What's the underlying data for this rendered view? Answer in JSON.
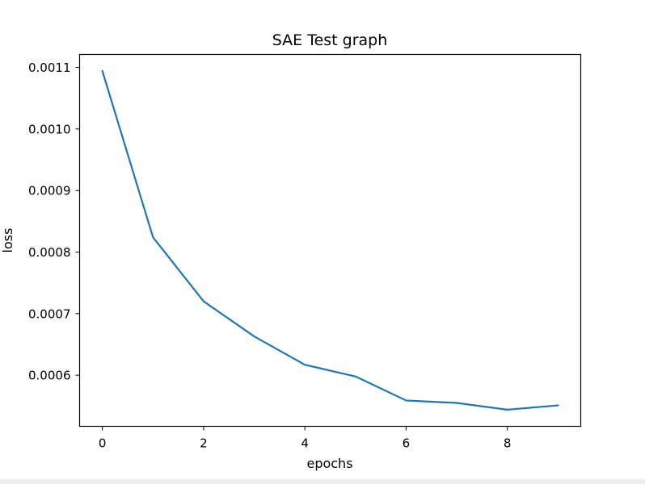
{
  "chart_data": {
    "type": "line",
    "title": "SAE Test graph",
    "xlabel": "epochs",
    "ylabel": "loss",
    "x": [
      0,
      1,
      2,
      3,
      4,
      5,
      6,
      7,
      8,
      9
    ],
    "series": [
      {
        "values": [
          0.001094,
          0.000824,
          0.00072,
          0.000663,
          0.000617,
          0.000598,
          0.000559,
          0.000555,
          0.000544,
          0.000551
        ],
        "color": "#1f77b4"
      }
    ],
    "xlim": [
      -0.45,
      9.45
    ],
    "ylim": [
      0.000517,
      0.001121
    ],
    "xticks": [
      0,
      2,
      4,
      6,
      8
    ],
    "xtick_labels": [
      "0",
      "2",
      "4",
      "6",
      "8"
    ],
    "yticks": [
      0.0006,
      0.0007,
      0.0008,
      0.0009,
      0.001,
      0.0011
    ],
    "ytick_labels": [
      "0.0006",
      "0.0007",
      "0.0008",
      "0.0009",
      "0.0010",
      "0.0011"
    ],
    "grid": false,
    "legend": false
  }
}
